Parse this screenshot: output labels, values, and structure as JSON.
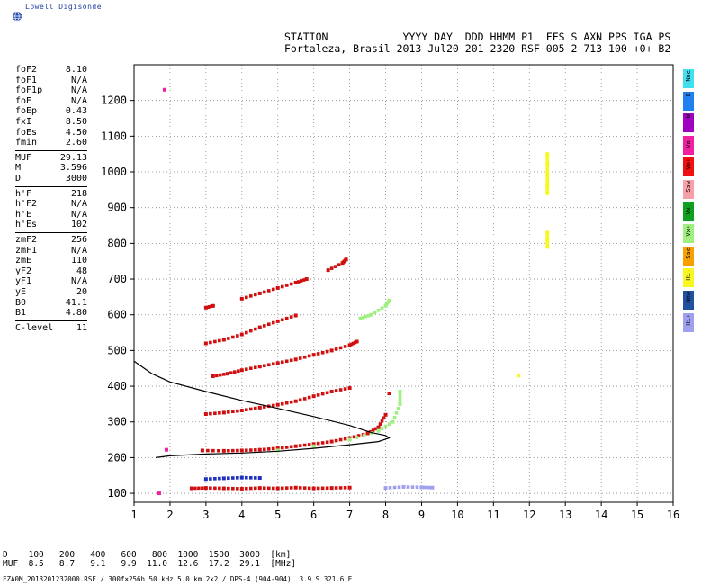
{
  "logo": {
    "text": "Lowell Digisonde",
    "icon": "globe-icon"
  },
  "header": {
    "labels": "STATION            YYYY DAY  DDD HHMM P1  FFS S AXN PPS IGA PS",
    "values": "Fortaleza, Brasil 2013 Jul20 201 2320 RSF 005 2 713 100 +0+ B2"
  },
  "params": [
    {
      "k": "foF2",
      "v": "8.10"
    },
    {
      "k": "foF1",
      "v": "N/A"
    },
    {
      "k": "foF1p",
      "v": "N/A"
    },
    {
      "k": "foE",
      "v": "N/A"
    },
    {
      "k": "foEp",
      "v": "0.43"
    },
    {
      "k": "fxI",
      "v": "8.50"
    },
    {
      "k": "foEs",
      "v": "4.50"
    },
    {
      "k": "fmin",
      "v": "2.60"
    },
    {
      "sep": true
    },
    {
      "k": "MUF",
      "v": "29.13"
    },
    {
      "k": "M",
      "v": "3.596"
    },
    {
      "k": "D",
      "v": "3000"
    },
    {
      "sep": true
    },
    {
      "k": "h'F",
      "v": "218"
    },
    {
      "k": "h'F2",
      "v": "N/A"
    },
    {
      "k": "h'E",
      "v": "N/A"
    },
    {
      "k": "h'Es",
      "v": "102"
    },
    {
      "sep": true
    },
    {
      "k": "zmF2",
      "v": "256"
    },
    {
      "k": "zmF1",
      "v": "N/A"
    },
    {
      "k": "zmE",
      "v": "110"
    },
    {
      "k": "yF2",
      "v": "48"
    },
    {
      "k": "yF1",
      "v": "N/A"
    },
    {
      "k": "yE",
      "v": "20"
    },
    {
      "k": "B0",
      "v": "41.1"
    },
    {
      "k": "B1",
      "v": "4.80"
    },
    {
      "sep": true
    },
    {
      "k": "C-level",
      "v": "11"
    }
  ],
  "legend": [
    {
      "label": "Nne",
      "color": "#40e0f0"
    },
    {
      "label": "E",
      "color": "#2080f0"
    },
    {
      "label": "W",
      "color": "#a000c0"
    },
    {
      "label": "Vo-",
      "color": "#f020a0"
    },
    {
      "label": "Vo+",
      "color": "#f01010"
    },
    {
      "label": "Ssw",
      "color": "#f8a0a8"
    },
    {
      "label": "Vx-",
      "color": "#10a020"
    },
    {
      "label": "Vx+",
      "color": "#a0f080"
    },
    {
      "label": "Sse",
      "color": "#f8a000"
    },
    {
      "label": "Hi-",
      "color": "#f8f820"
    },
    {
      "label": "Nnw",
      "color": "#2050a0"
    },
    {
      "label": "Hi+",
      "color": "#a0a0f0"
    }
  ],
  "distance_table": {
    "row1": "D    100   200   400   600   800  1000  1500  3000  [km]",
    "row2": "MUF  8.5   8.7   9.1   9.9  11.0  12.6  17.2  29.1  [MHz]"
  },
  "footer": "FZA0M_2013201232000.RSF / 300f×256h 50 kHz 5.0 km 2x2 / DPS-4 (904-904)  3.9 S 321.6 E",
  "chart_data": {
    "type": "scatter",
    "title": "",
    "xlabel": "",
    "ylabel": "",
    "xlim": [
      1,
      16
    ],
    "ylim": [
      75,
      1300
    ],
    "x_ticks": [
      "1",
      "2",
      "3",
      "4",
      "5",
      "6",
      "7",
      "8",
      "9",
      "10",
      "11",
      "12",
      "13",
      "14",
      "15",
      "16"
    ],
    "y_ticks": [
      "100",
      "200",
      "300",
      "400",
      "500",
      "600",
      "700",
      "800",
      "900",
      "1000",
      "1100",
      "1200"
    ],
    "grid": true,
    "series": [
      {
        "color": "#d01010",
        "points": [
          [
            2.6,
            114
          ],
          [
            3.0,
            115
          ],
          [
            3.5,
            114
          ],
          [
            4.0,
            113
          ],
          [
            4.5,
            115
          ],
          [
            5.0,
            114
          ],
          [
            5.5,
            116
          ],
          [
            6.0,
            114
          ],
          [
            6.5,
            115
          ],
          [
            7.0,
            116
          ]
        ]
      },
      {
        "color": "#2030c0",
        "points": [
          [
            3.0,
            140
          ],
          [
            3.5,
            142
          ],
          [
            4.0,
            144
          ],
          [
            4.5,
            143
          ]
        ]
      },
      {
        "color": "#a0a0f0",
        "points": [
          [
            8.0,
            115
          ],
          [
            8.5,
            118
          ],
          [
            9.0,
            117
          ],
          [
            9.3,
            116
          ]
        ]
      },
      {
        "color": "#d01010",
        "points": [
          [
            2.9,
            220
          ],
          [
            3.5,
            219
          ],
          [
            4.0,
            220
          ],
          [
            4.5,
            222
          ],
          [
            5.0,
            226
          ],
          [
            5.5,
            232
          ],
          [
            6.0,
            238
          ],
          [
            6.5,
            245
          ],
          [
            7.0,
            255
          ],
          [
            7.5,
            268
          ],
          [
            7.8,
            285
          ],
          [
            8.0,
            320
          ],
          [
            8.1,
            380
          ]
        ]
      },
      {
        "color": "#a0f080",
        "points": [
          [
            5.0,
            220
          ],
          [
            6.0,
            232
          ],
          [
            7.0,
            250
          ],
          [
            7.8,
            275
          ],
          [
            8.2,
            300
          ],
          [
            8.4,
            350
          ],
          [
            8.4,
            385
          ]
        ]
      },
      {
        "color": "#d01010",
        "points": [
          [
            3.0,
            322
          ],
          [
            3.5,
            326
          ],
          [
            4.0,
            332
          ],
          [
            4.5,
            340
          ],
          [
            5.0,
            348
          ],
          [
            5.5,
            358
          ],
          [
            6.0,
            372
          ],
          [
            6.5,
            385
          ],
          [
            7.0,
            395
          ]
        ]
      },
      {
        "color": "#d01010",
        "points": [
          [
            3.2,
            428
          ],
          [
            3.6,
            435
          ],
          [
            4.0,
            445
          ],
          [
            4.5,
            455
          ],
          [
            5.0,
            465
          ],
          [
            5.5,
            475
          ],
          [
            6.0,
            488
          ],
          [
            6.5,
            500
          ],
          [
            7.0,
            515
          ],
          [
            7.2,
            525
          ]
        ]
      },
      {
        "color": "#d01010",
        "points": [
          [
            3.0,
            520
          ],
          [
            3.5,
            530
          ],
          [
            4.0,
            545
          ],
          [
            4.5,
            565
          ],
          [
            5.0,
            582
          ],
          [
            5.5,
            598
          ]
        ]
      },
      {
        "color": "#d01010",
        "points": [
          [
            3.0,
            620
          ],
          [
            3.2,
            625
          ]
        ]
      },
      {
        "color": "#d01010",
        "points": [
          [
            4.0,
            645
          ],
          [
            4.5,
            660
          ],
          [
            5.0,
            675
          ],
          [
            5.5,
            690
          ],
          [
            5.8,
            700
          ]
        ]
      },
      {
        "color": "#a0f080",
        "points": [
          [
            7.3,
            590
          ],
          [
            7.6,
            600
          ],
          [
            8.0,
            625
          ],
          [
            8.1,
            640
          ]
        ]
      },
      {
        "color": "#d01010",
        "points": [
          [
            6.4,
            725
          ],
          [
            6.8,
            745
          ],
          [
            6.9,
            755
          ]
        ]
      },
      {
        "color": "#f8f820",
        "points": [
          [
            12.5,
            790
          ],
          [
            12.5,
            810
          ],
          [
            12.5,
            830
          ],
          [
            12.5,
            940
          ],
          [
            12.5,
            960
          ],
          [
            12.5,
            990
          ],
          [
            12.5,
            1020
          ],
          [
            12.5,
            1050
          ],
          [
            11.7,
            430
          ]
        ]
      },
      {
        "color": "#f020a0",
        "points": [
          [
            1.85,
            1230
          ],
          [
            1.9,
            222
          ],
          [
            1.7,
            100
          ]
        ]
      }
    ],
    "profile_curve": [
      [
        1.0,
        470
      ],
      [
        1.5,
        435
      ],
      [
        2.0,
        412
      ],
      [
        3.0,
        385
      ],
      [
        4.0,
        360
      ],
      [
        5.0,
        338
      ],
      [
        6.0,
        315
      ],
      [
        7.0,
        290
      ],
      [
        7.6,
        270
      ],
      [
        8.0,
        262
      ],
      [
        8.1,
        255
      ],
      [
        7.8,
        245
      ],
      [
        7.0,
        236
      ],
      [
        6.0,
        226
      ],
      [
        5.0,
        218
      ],
      [
        4.0,
        213
      ],
      [
        3.0,
        210
      ],
      [
        2.0,
        205
      ],
      [
        1.6,
        200
      ]
    ]
  }
}
